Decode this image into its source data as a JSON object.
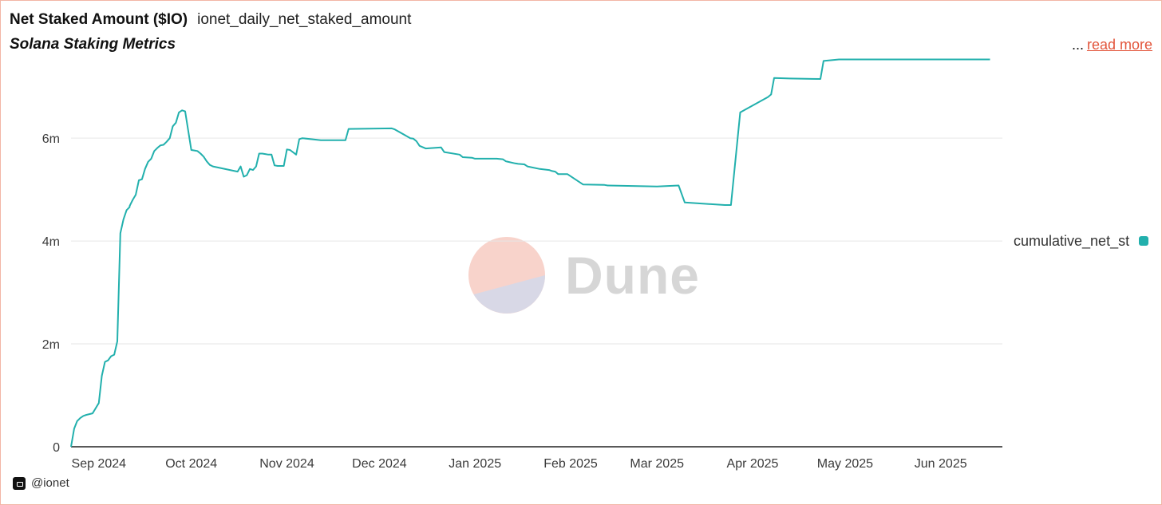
{
  "header": {
    "title": "Net Staked Amount ($IO)",
    "query_name": "ionet_daily_net_staked_amount",
    "subtitle": "Solana Staking Metrics",
    "ellipsis": "...",
    "read_more": "read more"
  },
  "watermark": {
    "text": "Dune"
  },
  "brand": {
    "handle": "@ionet",
    "icon": "ionet-logo-icon"
  },
  "colors": {
    "series": "#22b0ad",
    "border": "#f2b6a6",
    "link": "#e2543a",
    "watermark": "#d6d6d6"
  },
  "chart_data": {
    "type": "line",
    "title": "Net Staked Amount ($IO)",
    "ylabel": "",
    "xlabel": "",
    "ylim": [
      0,
      7600000
    ],
    "xlim": [
      "2024-08-23",
      "2025-06-21"
    ],
    "yticks": [
      0,
      2000000,
      4000000,
      6000000
    ],
    "ytick_labels": [
      "0",
      "2m",
      "4m",
      "6m"
    ],
    "xticks": [
      "2024-09-01",
      "2024-10-01",
      "2024-11-01",
      "2024-12-01",
      "2025-01-01",
      "2025-02-01",
      "2025-03-01",
      "2025-04-01",
      "2025-05-01",
      "2025-06-01"
    ],
    "xtick_labels": [
      "Sep 2024",
      "Oct 2024",
      "Nov 2024",
      "Dec 2024",
      "Jan 2025",
      "Feb 2025",
      "Mar 2025",
      "Apr 2025",
      "May 2025",
      "Jun 2025"
    ],
    "grid": true,
    "legend_position": "right",
    "series": [
      {
        "name": "cumulative_net_st",
        "color": "#22b0ad",
        "x": [
          "2024-08-23",
          "2024-08-24",
          "2024-08-25",
          "2024-08-26",
          "2024-08-27",
          "2024-08-28",
          "2024-08-30",
          "2024-09-01",
          "2024-09-02",
          "2024-09-03",
          "2024-09-04",
          "2024-09-05",
          "2024-09-06",
          "2024-09-07",
          "2024-09-08",
          "2024-09-09",
          "2024-09-10",
          "2024-09-11",
          "2024-09-11",
          "2024-09-12",
          "2024-09-13",
          "2024-09-14",
          "2024-09-15",
          "2024-09-16",
          "2024-09-17",
          "2024-09-18",
          "2024-09-19",
          "2024-09-20",
          "2024-09-21",
          "2024-09-22",
          "2024-09-23",
          "2024-09-24",
          "2024-09-25",
          "2024-09-26",
          "2024-09-27",
          "2024-09-28",
          "2024-09-29",
          "2024-09-30",
          "2024-10-01",
          "2024-10-02",
          "2024-10-03",
          "2024-10-04",
          "2024-10-05",
          "2024-10-06",
          "2024-10-07",
          "2024-10-08",
          "2024-10-16",
          "2024-10-17",
          "2024-10-18",
          "2024-10-19",
          "2024-10-20",
          "2024-10-21",
          "2024-10-22",
          "2024-10-23",
          "2024-10-24",
          "2024-10-25",
          "2024-10-26",
          "2024-10-27",
          "2024-10-28",
          "2024-10-29",
          "2024-10-30",
          "2024-10-31",
          "2024-11-01",
          "2024-11-02",
          "2024-11-04",
          "2024-11-05",
          "2024-11-06",
          "2024-11-12",
          "2024-11-20",
          "2024-11-21",
          "2024-12-05",
          "2024-12-06",
          "2024-12-11",
          "2024-12-12",
          "2024-12-13",
          "2024-12-14",
          "2024-12-16",
          "2024-12-21",
          "2024-12-22",
          "2024-12-27",
          "2024-12-28",
          "2024-12-31",
          "2025-01-01",
          "2025-01-05",
          "2025-01-08",
          "2025-01-10",
          "2025-01-11",
          "2025-01-14",
          "2025-01-15",
          "2025-01-17",
          "2025-01-18",
          "2025-01-22",
          "2025-01-25",
          "2025-01-26",
          "2025-01-27",
          "2025-01-28",
          "2025-01-31",
          "2025-02-05",
          "2025-02-12",
          "2025-02-13",
          "2025-03-01",
          "2025-03-08",
          "2025-03-10",
          "2025-03-23",
          "2025-03-25",
          "2025-03-28",
          "2025-04-06",
          "2025-04-07",
          "2025-04-08",
          "2025-04-13",
          "2025-04-23",
          "2025-04-24",
          "2025-04-29",
          "2025-04-30",
          "2025-05-21",
          "2025-05-24",
          "2025-05-25",
          "2025-05-29",
          "2025-05-30",
          "2025-05-31",
          "2025-06-01",
          "2025-06-02",
          "2025-06-04",
          "2025-06-15",
          "2025-06-16",
          "2025-06-17"
        ],
        "values": [
          0,
          350000,
          500000,
          560000,
          600000,
          620000,
          650000,
          850000,
          1380000,
          1650000,
          1680000,
          1760000,
          1790000,
          2050000,
          4150000,
          4420000,
          4600000,
          4660000,
          4680000,
          4800000,
          4900000,
          5180000,
          5200000,
          5400000,
          5540000,
          5600000,
          5750000,
          5810000,
          5860000,
          5870000,
          5930000,
          6000000,
          6230000,
          6300000,
          6500000,
          6540000,
          6520000,
          6150000,
          5770000,
          5760000,
          5750000,
          5700000,
          5640000,
          5550000,
          5480000,
          5450000,
          5350000,
          5450000,
          5250000,
          5280000,
          5400000,
          5380000,
          5450000,
          5700000,
          5700000,
          5690000,
          5680000,
          5680000,
          5470000,
          5460000,
          5460000,
          5460000,
          5780000,
          5770000,
          5680000,
          5980000,
          6000000,
          5960000,
          5960000,
          6180000,
          6190000,
          6170000,
          6000000,
          5990000,
          5940000,
          5850000,
          5800000,
          5820000,
          5730000,
          5680000,
          5630000,
          5620000,
          5600000,
          5600000,
          5600000,
          5590000,
          5550000,
          5510000,
          5500000,
          5490000,
          5450000,
          5400000,
          5380000,
          5360000,
          5350000,
          5300000,
          5300000,
          5100000,
          5090000,
          5080000,
          5060000,
          5080000,
          4750000,
          4700000,
          4700000,
          6500000,
          6800000,
          6850000,
          7170000,
          7160000,
          7150000,
          7500000,
          7530000,
          7530000,
          7530000,
          7530000,
          7530000,
          7530000,
          7530000,
          7530000,
          7530000,
          7530000,
          7530000,
          7530000,
          7530000,
          7530000
        ]
      }
    ]
  }
}
